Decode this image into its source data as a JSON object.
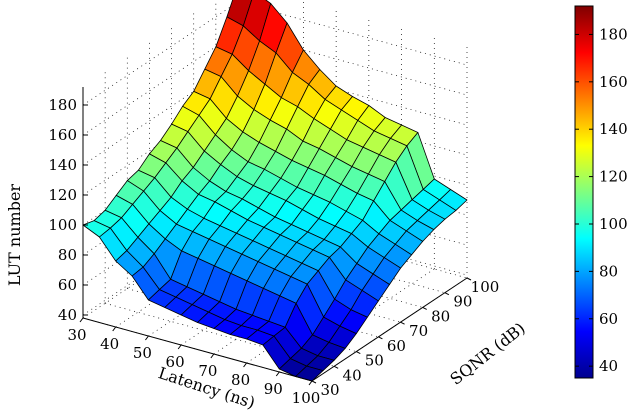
{
  "chart_data": {
    "type": "surface3d",
    "title": "",
    "xlabel": "Latency (ns)",
    "ylabel": "SQNR (dB)",
    "zlabel": "LUT number",
    "x_ticks": [
      "30",
      "40",
      "50",
      "60",
      "70",
      "80",
      "90",
      "100"
    ],
    "y_ticks": [
      "30",
      "40",
      "50",
      "60",
      "70",
      "80",
      "90",
      "100"
    ],
    "z_ticks": [
      "40",
      "60",
      "80",
      "100",
      "120",
      "140",
      "160",
      "180"
    ],
    "xlim": [
      30,
      100
    ],
    "ylim": [
      30,
      100
    ],
    "zlim": [
      38,
      192
    ],
    "colorbar": {
      "ticks": [
        "40",
        "60",
        "80",
        "100",
        "120",
        "140",
        "160",
        "180"
      ],
      "range": [
        35,
        192
      ],
      "colormap": "jet"
    },
    "grid": true,
    "x": [
      30,
      35,
      40,
      45,
      50,
      55,
      60,
      65,
      70,
      75,
      80,
      85,
      90,
      95,
      100
    ],
    "y": [
      30,
      35,
      40,
      45,
      50,
      55,
      60,
      65,
      70,
      75,
      80,
      85,
      90,
      95,
      100
    ],
    "z": [
      [
        100,
        98,
        100,
        105,
        110,
        112,
        118,
        122,
        128,
        135,
        140,
        150,
        160,
        175,
        192
      ],
      [
        95,
        96,
        98,
        102,
        106,
        110,
        115,
        120,
        126,
        132,
        138,
        148,
        158,
        172,
        190
      ],
      [
        82,
        84,
        88,
        92,
        96,
        100,
        106,
        110,
        116,
        122,
        128,
        138,
        150,
        165,
        185
      ],
      [
        75,
        76,
        80,
        85,
        90,
        95,
        100,
        104,
        110,
        115,
        122,
        132,
        144,
        160,
        175
      ],
      [
        62,
        64,
        66,
        80,
        88,
        92,
        98,
        100,
        105,
        110,
        118,
        128,
        138,
        150,
        160
      ],
      [
        60,
        62,
        64,
        78,
        86,
        90,
        95,
        98,
        102,
        108,
        115,
        125,
        135,
        145,
        150
      ],
      [
        58,
        60,
        62,
        76,
        84,
        88,
        92,
        95,
        100,
        105,
        112,
        120,
        130,
        138,
        142
      ],
      [
        56,
        58,
        60,
        74,
        82,
        86,
        90,
        92,
        98,
        102,
        110,
        118,
        126,
        134,
        138
      ],
      [
        55,
        56,
        58,
        72,
        80,
        84,
        88,
        90,
        95,
        100,
        108,
        115,
        122,
        130,
        135
      ],
      [
        54,
        55,
        57,
        70,
        78,
        82,
        86,
        88,
        92,
        98,
        105,
        112,
        120,
        126,
        130
      ],
      [
        54,
        55,
        56,
        68,
        76,
        80,
        84,
        86,
        90,
        95,
        102,
        110,
        118,
        124,
        128
      ],
      [
        53,
        54,
        55,
        66,
        74,
        78,
        82,
        84,
        88,
        92,
        100,
        108,
        116,
        122,
        126
      ],
      [
        40,
        42,
        44,
        48,
        55,
        62,
        70,
        76,
        82,
        86,
        90,
        92,
        94,
        96,
        98
      ],
      [
        38,
        40,
        42,
        46,
        52,
        58,
        66,
        72,
        78,
        82,
        86,
        88,
        90,
        92,
        94
      ],
      [
        38,
        40,
        42,
        45,
        50,
        56,
        62,
        68,
        74,
        78,
        82,
        85,
        87,
        88,
        90
      ]
    ]
  }
}
